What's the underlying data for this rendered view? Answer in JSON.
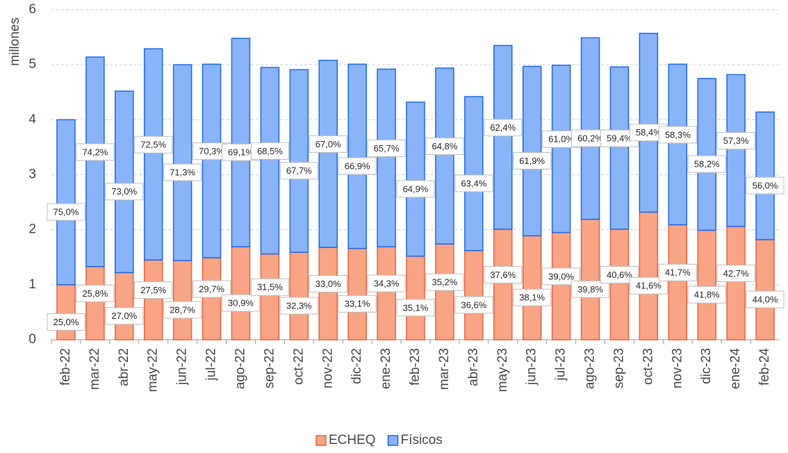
{
  "chart_data": {
    "type": "stacked_bar",
    "y_label": "millones",
    "categories": [
      "feb-22",
      "mar-22",
      "abr-22",
      "may-22",
      "jun-22",
      "jul-22",
      "ago-22",
      "sep-22",
      "oct-22",
      "nov-22",
      "dic-22",
      "ene-23",
      "feb-23",
      "mar-23",
      "abr-23",
      "may-23",
      "jun-23",
      "jul-23",
      "ago-23",
      "sep-23",
      "oct-23",
      "nov-23",
      "dic-23",
      "ene-24",
      "feb-24"
    ],
    "series": [
      {
        "name": "ECHEQ",
        "color": "#f8a586",
        "edge": "#e8603c",
        "values": [
          1.0,
          1.33,
          1.22,
          1.45,
          1.44,
          1.49,
          1.69,
          1.56,
          1.59,
          1.68,
          1.66,
          1.69,
          1.52,
          1.74,
          1.62,
          2.01,
          1.89,
          1.95,
          2.19,
          2.01,
          2.32,
          2.09,
          1.99,
          2.06,
          1.82
        ],
        "share_labels": [
          "25,0%",
          "25,8%",
          "27,0%",
          "27,5%",
          "28,7%",
          "29,7%",
          "30,9%",
          "31,5%",
          "32,3%",
          "33,0%",
          "33,1%",
          "34,3%",
          "35,1%",
          "35,2%",
          "36,6%",
          "37,6%",
          "38,1%",
          "39,0%",
          "39,8%",
          "40,6%",
          "41,6%",
          "41,7%",
          "41,8%",
          "42,7%",
          "44,0%"
        ]
      },
      {
        "name": "Físicos",
        "color": "#8ab4f8",
        "edge": "#1a66e0",
        "values": [
          3.0,
          3.81,
          3.3,
          3.84,
          3.56,
          3.52,
          3.79,
          3.39,
          3.32,
          3.4,
          3.35,
          3.23,
          2.8,
          3.2,
          2.8,
          3.34,
          3.08,
          3.04,
          3.3,
          2.95,
          3.25,
          2.92,
          2.76,
          2.76,
          2.32
        ],
        "share_labels": [
          "75,0%",
          "74,2%",
          "73,0%",
          "72,5%",
          "71,3%",
          "70,3%",
          "69,1%",
          "68,5%",
          "67,7%",
          "67,0%",
          "66,9%",
          "65,7%",
          "64,9%",
          "64,8%",
          "63,4%",
          "62,4%",
          "61,9%",
          "61,0%",
          "60,2%",
          "59,4%",
          "58,4%",
          "58,3%",
          "58,2%",
          "57,3%",
          "56,0%"
        ]
      }
    ],
    "ylim": [
      0,
      6
    ],
    "yticks": [
      0,
      1,
      2,
      3,
      4,
      5,
      6
    ],
    "grid": true,
    "legend": "bottom"
  }
}
